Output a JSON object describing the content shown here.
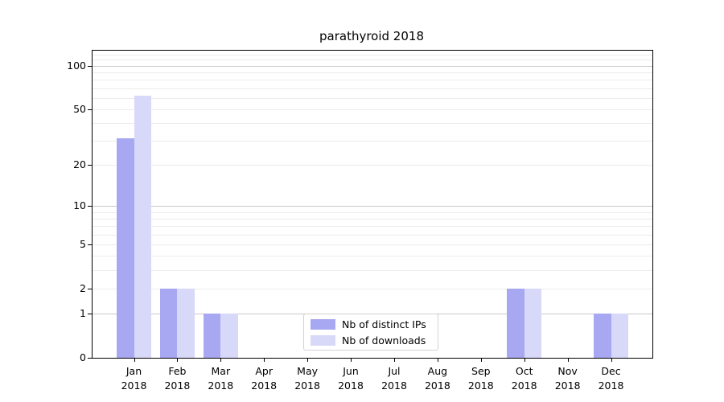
{
  "chart_data": {
    "type": "bar",
    "title": "parathyroid 2018",
    "yscale": "log1p",
    "categories": [
      "Jan",
      "Feb",
      "Mar",
      "Apr",
      "May",
      "Jun",
      "Jul",
      "Aug",
      "Sep",
      "Oct",
      "Nov",
      "Dec"
    ],
    "year_label": "2018",
    "series": [
      {
        "name": "Nb of distinct IPs",
        "color": "#a8a8f2",
        "values": [
          31,
          2,
          1,
          0,
          0,
          0,
          0,
          0,
          0,
          2,
          0,
          1
        ]
      },
      {
        "name": "Nb of downloads",
        "color": "#d8d8f8",
        "values": [
          62,
          2,
          1,
          0,
          0,
          0,
          0,
          0,
          0,
          2,
          0,
          1
        ]
      }
    ],
    "yticks": [
      0,
      1,
      2,
      5,
      10,
      20,
      50,
      100
    ],
    "ylim": [
      0,
      127
    ],
    "xlabel": "",
    "ylabel": "",
    "grid": {
      "major_values": [
        1,
        10,
        100
      ],
      "minor_values": [
        2,
        3,
        4,
        5,
        6,
        7,
        8,
        9,
        20,
        30,
        40,
        50,
        60,
        70,
        80,
        90,
        110,
        120
      ],
      "major_color": "#c8c8c8",
      "minor_color": "#ececec"
    },
    "legend": {
      "position": "lower-center",
      "border_color": "#d2d2d2"
    }
  }
}
